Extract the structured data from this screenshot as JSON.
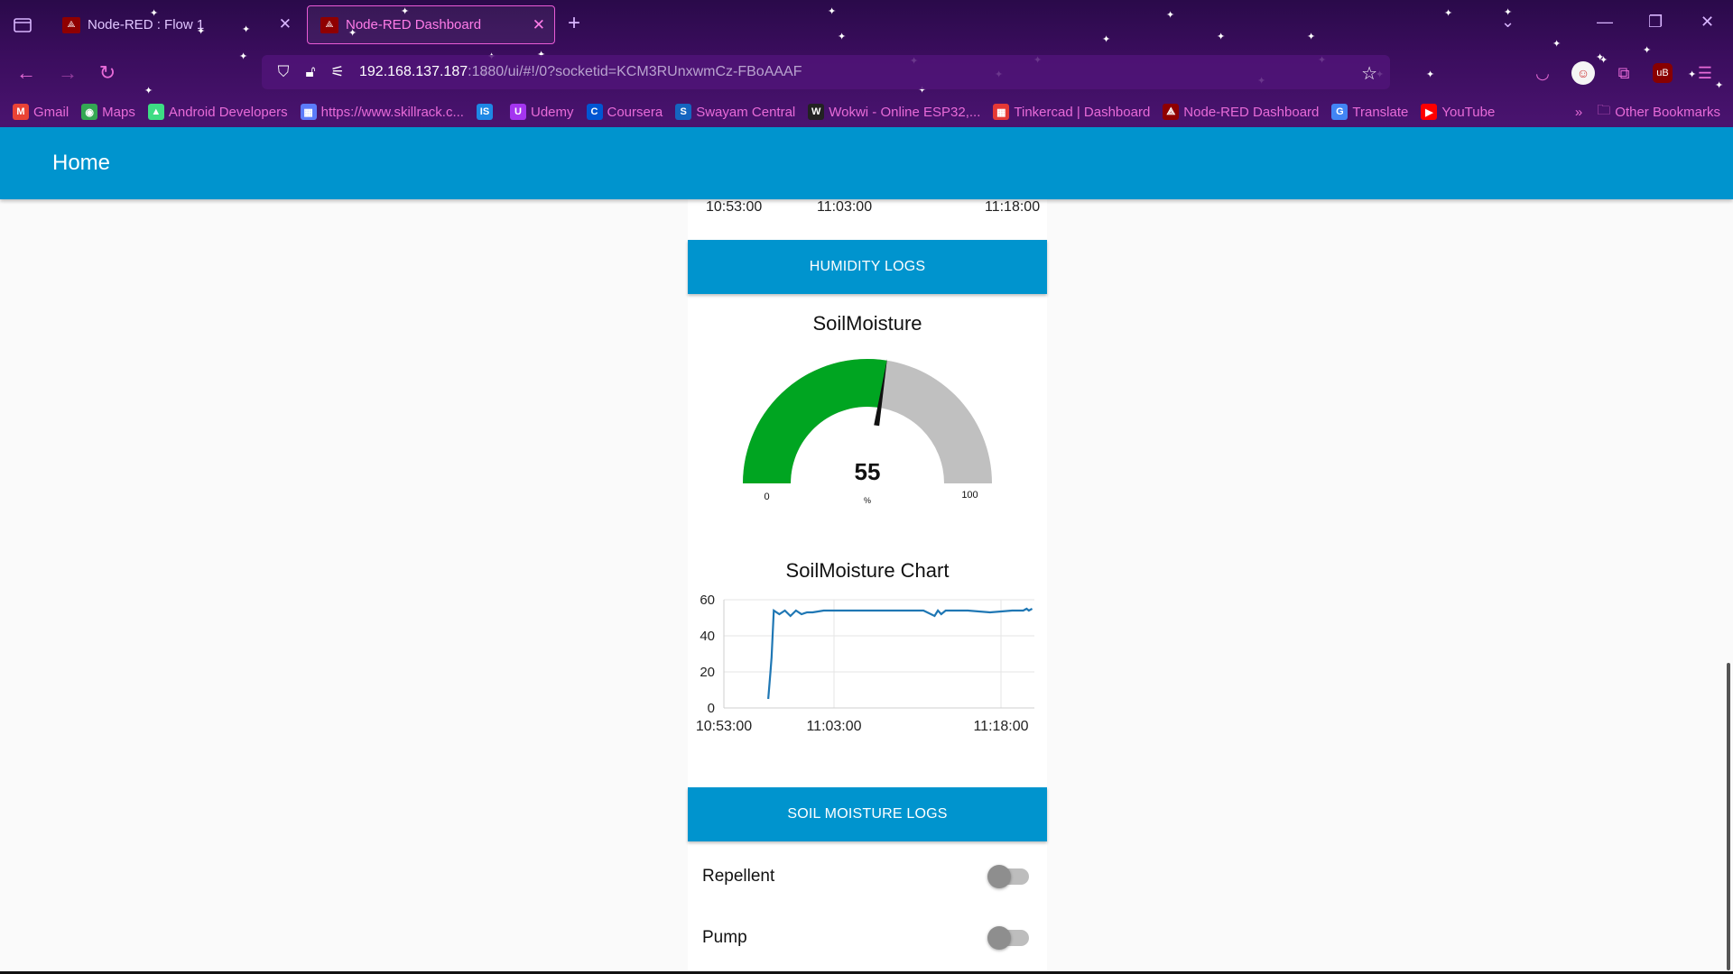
{
  "browser": {
    "tabs": [
      {
        "label": "Node-RED : Flow 1",
        "active": false
      },
      {
        "label": "Node-RED Dashboard",
        "active": true
      }
    ],
    "url": {
      "host": "192.168.137.187",
      "rest": ":1880/ui/#!/0?socketid=KCM3RUnxwmCz-FBoAAAF"
    },
    "bookmarks": [
      {
        "label": "Gmail",
        "icon": "gmail-icon",
        "color": "#ea4335",
        "glyph": "M"
      },
      {
        "label": "Maps",
        "icon": "maps-icon",
        "color": "#34a853",
        "glyph": "◉"
      },
      {
        "label": "Android Developers",
        "icon": "android-icon",
        "color": "#3ddc84",
        "glyph": "▲"
      },
      {
        "label": "https://www.skillrack.c...",
        "icon": "skillrack-icon",
        "color": "#5c7cfa",
        "glyph": "▦"
      },
      {
        "label": "",
        "icon": "is-icon",
        "color": "#1e88e5",
        "glyph": "IS"
      },
      {
        "label": "Udemy",
        "icon": "udemy-icon",
        "color": "#a435f0",
        "glyph": "U"
      },
      {
        "label": "Coursera",
        "icon": "coursera-icon",
        "color": "#0056d2",
        "glyph": "C"
      },
      {
        "label": "Swayam Central",
        "icon": "swayam-icon",
        "color": "#1565c0",
        "glyph": "S"
      },
      {
        "label": "Wokwi - Online ESP32,...",
        "icon": "wokwi-icon",
        "color": "#222222",
        "glyph": "W"
      },
      {
        "label": "Tinkercad | Dashboard",
        "icon": "tinkercad-icon",
        "color": "#e53935",
        "glyph": "▦"
      },
      {
        "label": "Node-RED Dashboard",
        "icon": "nodered-icon",
        "color": "#8f0000",
        "glyph": "⟁"
      },
      {
        "label": "Translate",
        "icon": "translate-icon",
        "color": "#4285f4",
        "glyph": "G"
      },
      {
        "label": "YouTube",
        "icon": "youtube-icon",
        "color": "#ff0000",
        "glyph": "▶"
      }
    ],
    "other_bookmarks": "Other Bookmarks",
    "accent": "#e86bd8"
  },
  "dashboard": {
    "title": "Home",
    "top_chart_xticks": [
      "10:53:00",
      "11:03:00",
      "11:18:00"
    ],
    "humidity_logs": "HUMIDITY LOGS",
    "gauge": {
      "title": "SoilMoisture",
      "value": 55,
      "display": "55",
      "unit": "%",
      "min": 0,
      "max": 100,
      "min_label": "0",
      "max_label": "100",
      "fill_color": "#00a521",
      "track_color": "#c0c0c0"
    },
    "soil_chart_title": "SoilMoisture Chart",
    "soil_logs": "SOIL MOISTURE LOGS",
    "switches": [
      {
        "label": "Repellent",
        "on": false
      },
      {
        "label": "Pump",
        "on": false
      }
    ],
    "header_color": "#0094ce"
  },
  "chart_data": {
    "type": "line",
    "title": "SoilMoisture Chart",
    "xlabel": "",
    "ylabel": "",
    "x_ticks": [
      "10:53:00",
      "11:03:00",
      "11:18:00"
    ],
    "y_ticks": [
      0,
      20,
      40,
      60
    ],
    "ylim": [
      0,
      60
    ],
    "xlim_minutes": [
      0,
      28
    ],
    "grid": true,
    "line_color": "#1f77b4",
    "series": [
      {
        "x_minutes": [
          4,
          4.2,
          4.3,
          4.5,
          5,
          5.5,
          6,
          6.5,
          7,
          7.5,
          8,
          9,
          10,
          12,
          14,
          16,
          18,
          19,
          19.3,
          19.6,
          20,
          22,
          24,
          26,
          27,
          27.3,
          27.5,
          27.8
        ],
        "values": [
          5,
          20,
          28,
          54,
          52,
          54,
          51,
          54,
          52,
          53,
          53,
          54,
          54,
          54,
          54,
          54,
          54,
          51,
          54,
          52,
          54,
          54,
          53,
          54,
          54,
          55,
          54,
          55
        ]
      }
    ]
  }
}
